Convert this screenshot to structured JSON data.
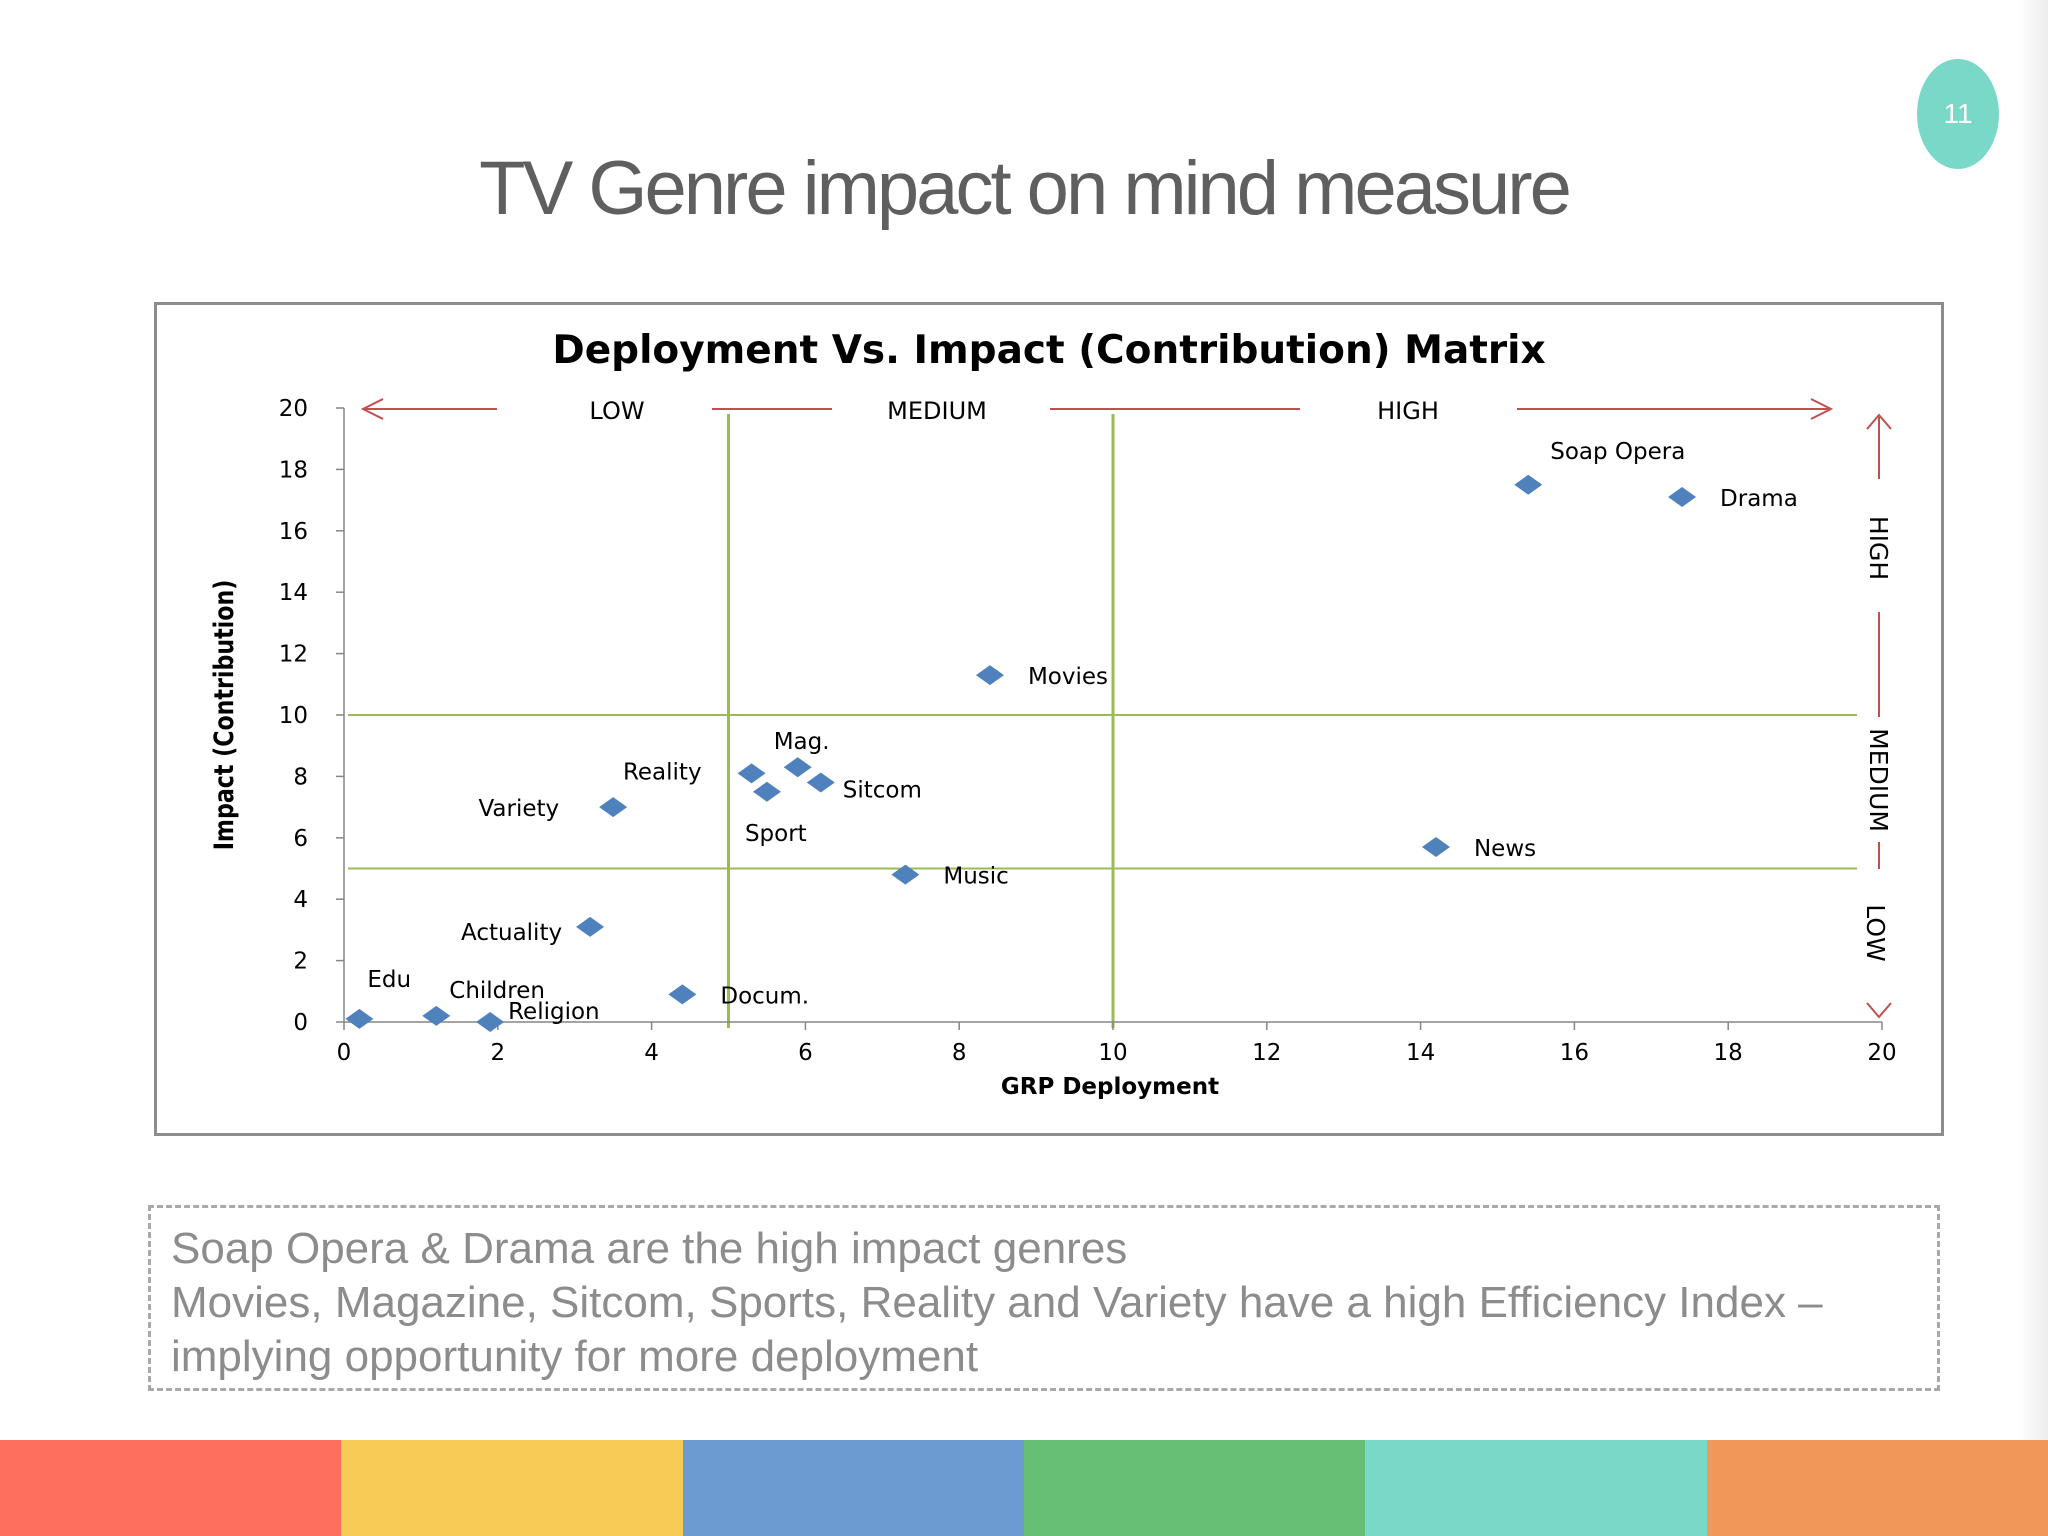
{
  "page_number": "11",
  "slide_title": "TV Genre impact on mind measure",
  "notes": [
    "Soap Opera & Drama are the high impact genres",
    "Movies, Magazine, Sitcom, Sports, Reality and Variety have a high Efficiency Index –",
    "implying opportunity for more deployment"
  ],
  "footer_colors": [
    "#fe6f5e",
    "#f7cc56",
    "#6c9bd2",
    "#66bf75",
    "#7ad8c8",
    "#f0975a"
  ],
  "chart_data": {
    "type": "scatter",
    "title": "Deployment Vs. Impact (Contribution) Matrix",
    "xlabel": "GRP Deployment",
    "ylabel": "Impact (Contribution)",
    "xlim": [
      0,
      20
    ],
    "ylim": [
      0,
      20
    ],
    "xticks": [
      "0",
      "2",
      "4",
      "6",
      "8",
      "10",
      "12",
      "14",
      "16",
      "18",
      "20"
    ],
    "yticks": [
      "0",
      "2",
      "4",
      "6",
      "8",
      "10",
      "12",
      "14",
      "16",
      "18",
      "20"
    ],
    "marker_color": "#4f81bd",
    "points": [
      {
        "label": "Soap Opera",
        "x": 15.4,
        "y": 17.5
      },
      {
        "label": "Drama",
        "x": 17.4,
        "y": 17.1
      },
      {
        "label": "Movies",
        "x": 8.4,
        "y": 11.3
      },
      {
        "label": "Mag.",
        "x": 5.9,
        "y": 8.3
      },
      {
        "label": "Reality",
        "x": 5.3,
        "y": 8.1
      },
      {
        "label": "Sitcom",
        "x": 6.2,
        "y": 7.8
      },
      {
        "label": "Sport",
        "x": 5.5,
        "y": 7.5
      },
      {
        "label": "Variety",
        "x": 3.5,
        "y": 7.0
      },
      {
        "label": "News",
        "x": 14.2,
        "y": 5.7
      },
      {
        "label": "Music",
        "x": 7.3,
        "y": 4.8
      },
      {
        "label": "Actuality",
        "x": 3.2,
        "y": 3.1
      },
      {
        "label": "Docum.",
        "x": 4.4,
        "y": 0.9
      },
      {
        "label": "Edu",
        "x": 0.2,
        "y": 0.1
      },
      {
        "label": "Children",
        "x": 1.2,
        "y": 0.2
      },
      {
        "label": "Religion",
        "x": 1.9,
        "y": 0.0
      }
    ],
    "x_zones": [
      "LOW",
      "MEDIUM",
      "HIGH"
    ],
    "y_zones": [
      "HIGH",
      "MEDIUM",
      "LOW"
    ],
    "x_dividers": [
      5,
      10
    ],
    "y_dividers": [
      5,
      10
    ],
    "divider_color": "#9bbb59",
    "arrow_color": "#c0504d"
  }
}
